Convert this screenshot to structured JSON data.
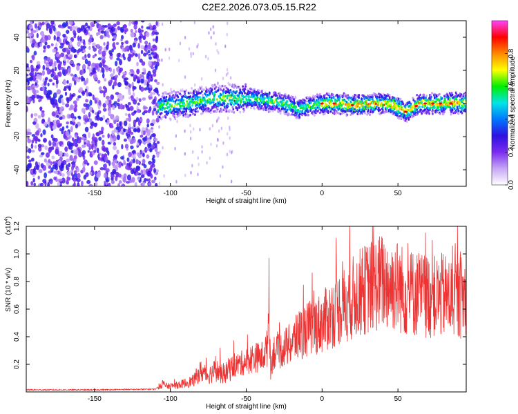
{
  "figure": {
    "title": "C2E2.2026.073.05.15.R22"
  },
  "chart_data": [
    {
      "type": "heatmap",
      "title": "C2E2.2026.073.05.15.R22",
      "xlabel": "Height of straight line (km)",
      "ylabel": "Frequency (Hz)",
      "xlim": [
        -195,
        95
      ],
      "ylim": [
        -50,
        50
      ],
      "x_ticks": [
        -150,
        -100,
        -50,
        0,
        50
      ],
      "y_ticks": [
        -40,
        -20,
        0,
        20,
        40
      ],
      "colorbar": {
        "label": "Normalized spectral amplitude",
        "range": [
          0,
          1
        ],
        "ticks": [
          0.0,
          0.2,
          0.4,
          0.6,
          0.8
        ],
        "colormap": [
          "#ffffff",
          "#c6a6f5",
          "#7a2cf0",
          "#2d12e0",
          "#0077ff",
          "#00e5e5",
          "#00ee00",
          "#ffff00",
          "#ff8800",
          "#ff0000",
          "#ff44ff"
        ]
      },
      "noise_region_x": [
        -195,
        -108
      ],
      "signal_center": {
        "x": [
          -108,
          -90,
          -70,
          -50,
          -30,
          -15,
          0,
          10,
          20,
          35,
          45,
          55,
          65,
          80,
          95
        ],
        "y": [
          -2,
          0,
          3,
          3,
          1,
          -3,
          0,
          0,
          -1,
          0,
          0,
          -5,
          0,
          0,
          0
        ]
      },
      "grid": false
    },
    {
      "type": "line",
      "xlabel": "Height of straight line (km)",
      "ylabel": "SNR (10 * v/v)",
      "y_multiplier": "(x10^4)",
      "y_multiplier_base": "(x10",
      "y_multiplier_exp": "4",
      "xlim": [
        -195,
        95
      ],
      "ylim": [
        0,
        1.2
      ],
      "x_ticks": [
        -150,
        -100,
        -50,
        0,
        50
      ],
      "y_ticks": [
        0.2,
        0.4,
        0.6,
        0.8,
        1.0,
        1.2
      ],
      "series": [
        {
          "color": "#ee3333",
          "x": [
            -195,
            -150,
            -110,
            -105,
            -102,
            -95,
            -85,
            -80,
            -75,
            -70,
            -65,
            -60,
            -55,
            -50,
            -45,
            -40,
            -36,
            -35,
            -34,
            -32,
            -30,
            -25,
            -20,
            -15,
            -10,
            -5,
            0,
            5,
            10,
            15,
            20,
            25,
            30,
            35,
            40,
            45,
            50,
            55,
            60,
            65,
            70,
            75,
            80,
            85,
            90,
            95
          ],
          "y": [
            0.015,
            0.015,
            0.02,
            0.06,
            0.04,
            0.05,
            0.08,
            0.15,
            0.12,
            0.16,
            0.12,
            0.18,
            0.2,
            0.22,
            0.25,
            0.25,
            0.32,
            0.78,
            0.15,
            0.3,
            0.28,
            0.32,
            0.35,
            0.42,
            0.45,
            0.48,
            0.5,
            0.55,
            0.6,
            0.63,
            0.68,
            0.72,
            0.75,
            0.78,
            0.8,
            0.78,
            0.77,
            0.72,
            0.72,
            0.7,
            0.7,
            0.68,
            0.7,
            0.68,
            0.68,
            0.7
          ]
        }
      ],
      "grid": false
    }
  ]
}
